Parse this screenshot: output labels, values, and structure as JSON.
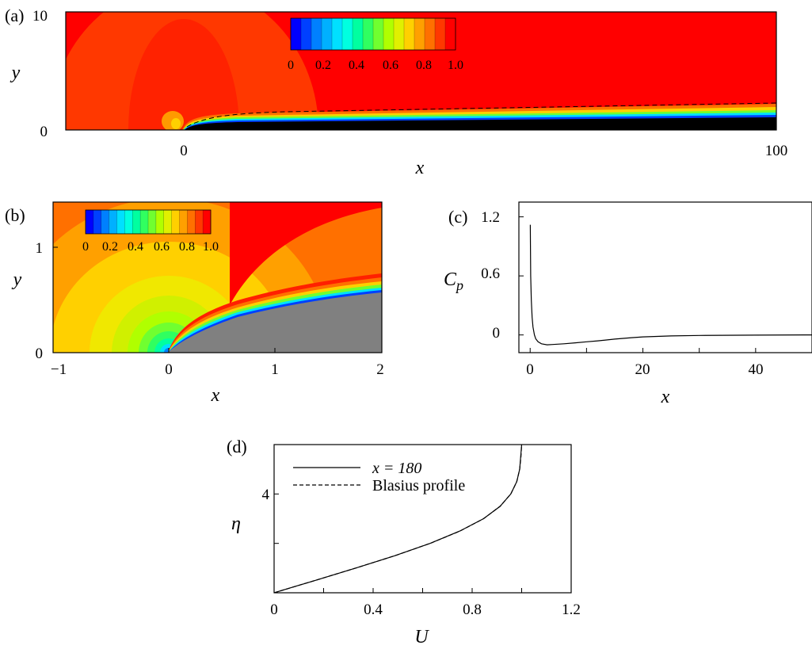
{
  "colorbar_ticks": [
    "0",
    "0.2",
    "0.4",
    "0.6",
    "0.8",
    "1.0"
  ],
  "colorbar_colors": [
    "#0000ff",
    "#0040ff",
    "#0080ff",
    "#00b0ff",
    "#00e0ff",
    "#00ffe0",
    "#00ffa0",
    "#30ff60",
    "#70ff30",
    "#b0ff00",
    "#e0f000",
    "#ffd000",
    "#ffa000",
    "#ff7000",
    "#ff3800",
    "#ff0000"
  ],
  "chart_data": [
    {
      "panel": "(a)",
      "type": "heatmap",
      "xlabel": "x",
      "ylabel": "y",
      "xticks": [
        "0",
        "100"
      ],
      "yticks": [
        "0",
        "10"
      ],
      "xlim": [
        -17,
        100
      ],
      "ylim": [
        0,
        10
      ],
      "colorbar": {
        "min": 0,
        "max": 1.0,
        "ticks": [
          0,
          0.2,
          0.4,
          0.6,
          0.8,
          1.0
        ]
      },
      "grid": false
    },
    {
      "panel": "(b)",
      "type": "heatmap",
      "xlabel": "x",
      "ylabel": "y",
      "xticks": [
        "−1",
        "0",
        "1",
        "2"
      ],
      "yticks": [
        "0",
        "1"
      ],
      "xlim": [
        -1,
        2
      ],
      "ylim": [
        0,
        1.4
      ],
      "colorbar": {
        "min": 0,
        "max": 1.0,
        "ticks": [
          0,
          0.2,
          0.4,
          0.6,
          0.8,
          1.0
        ]
      },
      "grid": false
    },
    {
      "panel": "(c)",
      "type": "line",
      "xlabel": "x",
      "ylabel": "C",
      "ylabel_sub": "p",
      "xticks": [
        "0",
        "20",
        "40"
      ],
      "yticks": [
        "0",
        "0.6",
        "1.2"
      ],
      "xlim": [
        -2,
        50
      ],
      "ylim": [
        -0.18,
        1.35
      ],
      "series": [
        {
          "x": [
            0.02,
            0.05,
            0.1,
            0.2,
            0.35,
            0.5,
            0.75,
            1.0,
            1.4,
            2.0,
            3.0,
            4.0,
            6.0,
            8.0,
            10.0,
            12.0,
            15.0,
            18.0,
            20.0,
            25.0,
            30.0,
            40.0,
            50.0
          ],
          "y": [
            1.12,
            0.9,
            0.6,
            0.35,
            0.18,
            0.08,
            0.0,
            -0.04,
            -0.07,
            -0.09,
            -0.1,
            -0.097,
            -0.09,
            -0.08,
            -0.07,
            -0.06,
            -0.042,
            -0.028,
            -0.02,
            -0.01,
            -0.005,
            -0.002,
            0.0
          ]
        }
      ],
      "grid": false
    },
    {
      "panel": "(d)",
      "type": "line",
      "xlabel": "U",
      "ylabel": "η",
      "xticks": [
        "0",
        "0.4",
        "0.8",
        "1.2"
      ],
      "yticks": [
        "4"
      ],
      "xlim": [
        0,
        1.2
      ],
      "ylim": [
        0,
        6
      ],
      "legend": "top-left",
      "series": [
        {
          "name": "x = 180",
          "x": [
            0,
            0.166,
            0.33,
            0.487,
            0.63,
            0.75,
            0.846,
            0.913,
            0.956,
            0.98,
            0.992,
            1.0
          ],
          "y": [
            0,
            0.5,
            1.0,
            1.5,
            2.0,
            2.5,
            3.0,
            3.5,
            4.0,
            4.5,
            5.0,
            6.0
          ]
        },
        {
          "name": "Blasius profile",
          "x": [
            0,
            0.166,
            0.33,
            0.487,
            0.63,
            0.751,
            0.846,
            0.913,
            0.956,
            0.98,
            0.992,
            0.997,
            1.0
          ],
          "y": [
            0,
            0.5,
            1.0,
            1.5,
            2.0,
            2.5,
            3.0,
            3.5,
            4.0,
            4.5,
            5.0,
            5.5,
            6.0
          ]
        }
      ],
      "grid": false
    }
  ]
}
